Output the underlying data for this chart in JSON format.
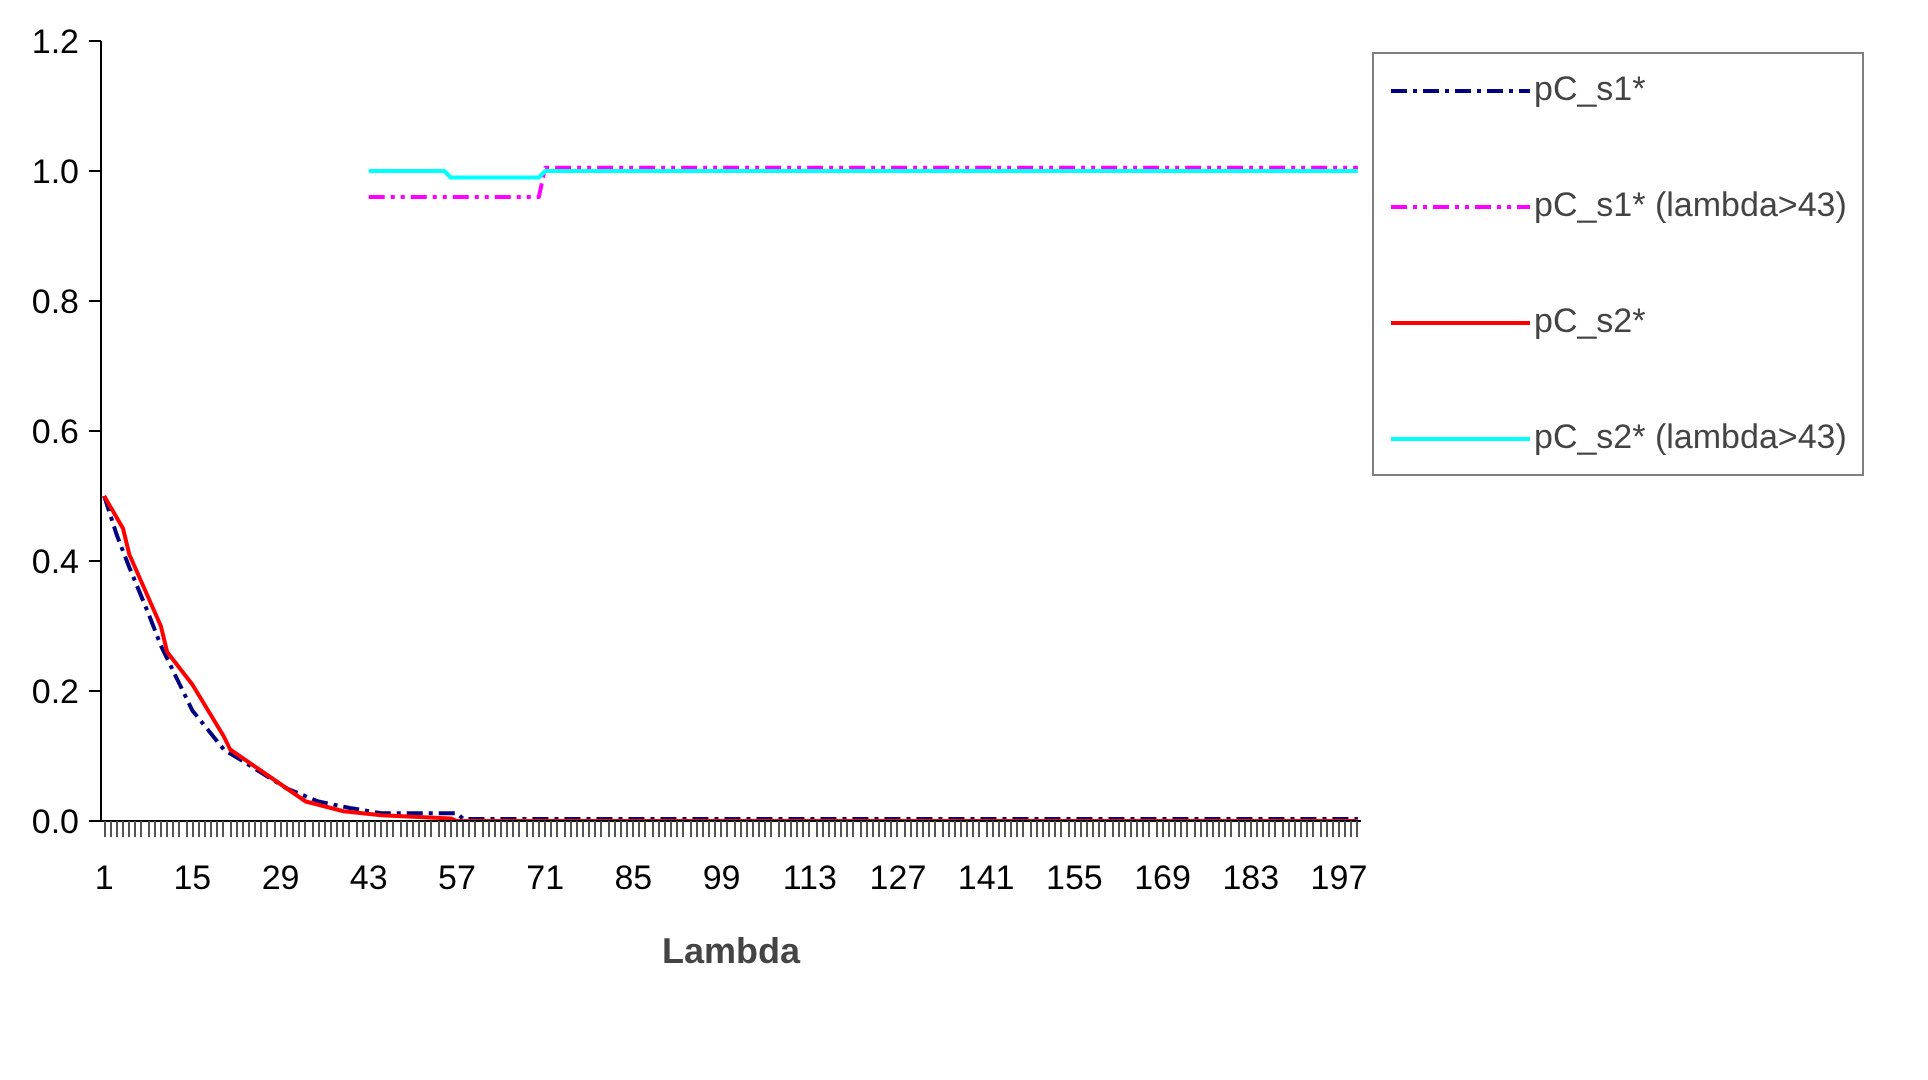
{
  "chart_data": {
    "type": "line",
    "xlabel": "Lambda",
    "xlim": [
      0.5,
      200.5
    ],
    "xticks": [
      1,
      15,
      29,
      43,
      57,
      71,
      85,
      99,
      113,
      127,
      141,
      155,
      169,
      183,
      197
    ],
    "ylim": [
      0,
      1.2
    ],
    "yticks": [
      {
        "value": 0,
        "label": "0.0"
      },
      {
        "value": 0.2,
        "label": "0.2"
      },
      {
        "value": 0.4,
        "label": "0.4"
      },
      {
        "value": 0.6,
        "label": "0.6"
      },
      {
        "value": 0.8,
        "label": "0.8"
      },
      {
        "value": 1.0,
        "label": "1.0"
      },
      {
        "value": 1.2,
        "label": "1.2"
      }
    ],
    "grid": false,
    "legend": "right",
    "marker": "none",
    "series": [
      {
        "name": "pC_s1*",
        "color": "#000080",
        "line_style": "dashdot",
        "x": [
          1,
          3,
          5,
          8,
          10,
          13,
          15,
          20,
          25,
          30,
          35,
          40,
          45,
          50,
          57,
          58,
          200
        ],
        "values": [
          0.5,
          0.44,
          0.39,
          0.32,
          0.27,
          0.21,
          0.17,
          0.11,
          0.08,
          0.05,
          0.03,
          0.02,
          0.012,
          0.012,
          0.012,
          0.003,
          0.003
        ]
      },
      {
        "name": "pC_s1* (lambda>43)",
        "color": "#ff00ff",
        "line_style": "dashdotdot",
        "x": [
          43,
          70,
          71,
          200
        ],
        "values": [
          0.96,
          0.96,
          1.005,
          1.005
        ]
      },
      {
        "name": "pC_s2*",
        "color": "#ff0000",
        "line_style": "solid",
        "x": [
          1,
          4,
          5,
          10,
          11,
          15,
          20,
          21,
          27,
          33,
          39,
          45,
          56,
          57,
          200
        ],
        "values": [
          0.5,
          0.45,
          0.41,
          0.3,
          0.26,
          0.21,
          0.13,
          0.11,
          0.07,
          0.03,
          0.015,
          0.009,
          0.004,
          0,
          0
        ]
      },
      {
        "name": "pC_s2* (lambda>43)",
        "color": "#00ffff",
        "line_style": "solid",
        "x": [
          43,
          55,
          56,
          70,
          71,
          200
        ],
        "values": [
          1.0,
          1.0,
          0.99,
          0.99,
          1.0,
          1.0
        ]
      }
    ]
  }
}
